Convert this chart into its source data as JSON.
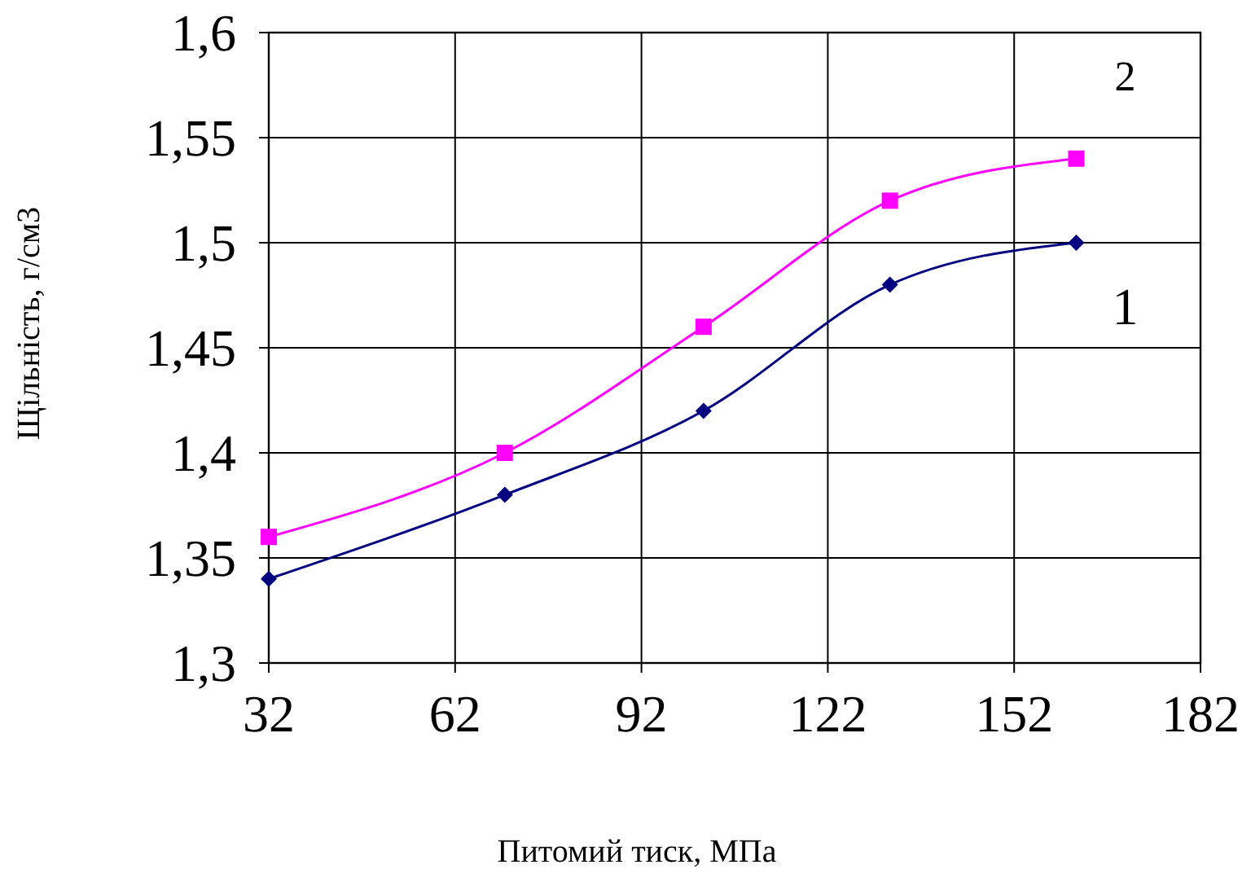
{
  "chart_data": {
    "type": "line",
    "xlabel": "Питомий тиск, МПа",
    "ylabel": "Щільність, г/см3",
    "x": [
      32,
      70,
      102,
      132,
      162
    ],
    "series": [
      {
        "name": "1",
        "color": "#000080",
        "values": [
          1.34,
          1.38,
          1.42,
          1.48,
          1.5
        ],
        "marker": "diamond"
      },
      {
        "name": "2",
        "color": "#ff00ff",
        "values": [
          1.36,
          1.4,
          1.46,
          1.52,
          1.54
        ],
        "marker": "square"
      }
    ],
    "xlim": [
      32,
      182
    ],
    "xticks": [
      32,
      62,
      92,
      122,
      152,
      182
    ],
    "ylim": [
      1.3,
      1.6
    ],
    "yticks": [
      {
        "value": 1.3,
        "label": "1,3"
      },
      {
        "value": 1.35,
        "label": "1,35"
      },
      {
        "value": 1.4,
        "label": "1,4"
      },
      {
        "value": 1.45,
        "label": "1,45"
      },
      {
        "value": 1.5,
        "label": "1,5"
      },
      {
        "value": 1.55,
        "label": "1,55"
      },
      {
        "value": 1.6,
        "label": "1,6"
      }
    ],
    "grid": true,
    "line_style": "solid"
  }
}
